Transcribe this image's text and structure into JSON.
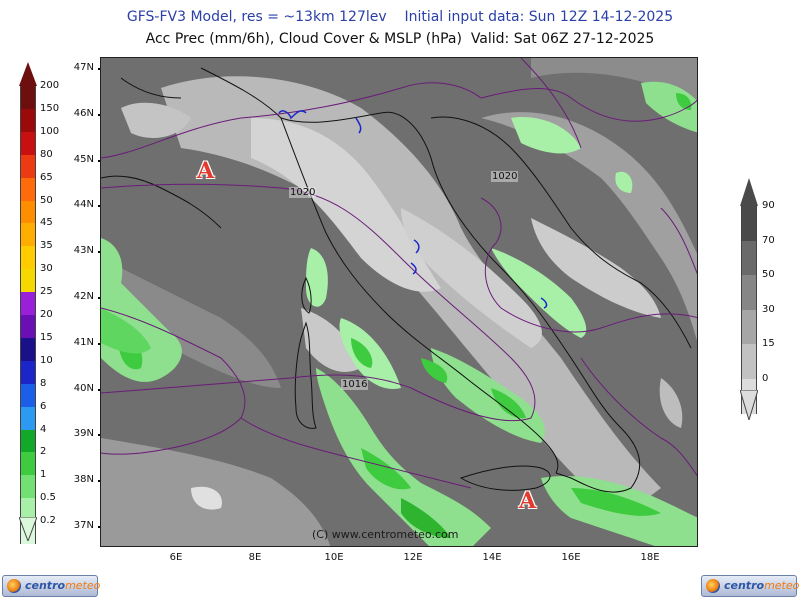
{
  "header": {
    "line1": "GFS-FV3 Model, res = ~13km 127lev    Initial input data: Sun 12Z 14-12-2025",
    "line2": "Acc Prec (mm/6h), Cloud Cover & MSLP (hPa)  Valid: Sat 06Z 27-12-2025"
  },
  "map": {
    "lat_labels": [
      "47N",
      "46N",
      "45N",
      "44N",
      "43N",
      "42N",
      "41N",
      "40N",
      "39N",
      "38N",
      "37N"
    ],
    "lon_labels": [
      "6E",
      "8E",
      "10E",
      "12E",
      "14E",
      "16E",
      "18E"
    ],
    "pressure_centers": [
      "A",
      "A"
    ],
    "isobar_labels": [
      "1020",
      "1020",
      "1016"
    ],
    "copyright": "(C) www.centrometeo.com"
  },
  "precip_legend": {
    "labels": [
      "200",
      "150",
      "100",
      "80",
      "65",
      "50",
      "45",
      "35",
      "30",
      "25",
      "20",
      "15",
      "10",
      "8",
      "6",
      "4",
      "2",
      "1",
      "0.5",
      "0.2"
    ],
    "colors": [
      "#6e0f0f",
      "#9b0a0a",
      "#c91010",
      "#ec3a12",
      "#ff6a0a",
      "#ff8d00",
      "#ffad00",
      "#ffcc00",
      "#f5d800",
      "#9a1fd8",
      "#6a0fb4",
      "#19108a",
      "#1c26c8",
      "#1b5fe8",
      "#2b9af0",
      "#12a82a",
      "#3fcb3f",
      "#72e072",
      "#a8efa8",
      "#dcf8dc"
    ]
  },
  "cloud_legend": {
    "labels": [
      "90",
      "70",
      "50",
      "30",
      "15",
      "0"
    ],
    "colors": [
      "#4a4a4a",
      "#6a6a6a",
      "#868686",
      "#a6a6a6",
      "#c2c2c2",
      "#dcdcdc"
    ]
  },
  "logos": {
    "left_name": "centro",
    "left_accent": "meteo",
    "right_name": "centro",
    "right_accent": "meteo"
  }
}
